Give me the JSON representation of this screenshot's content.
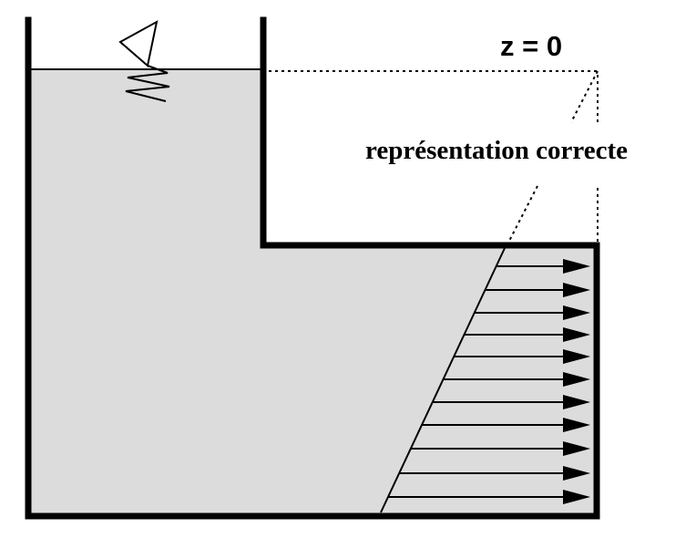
{
  "labels": {
    "datum": "z = 0",
    "representation": "représentation correcte"
  },
  "colors": {
    "water": "#dcdcdc",
    "wall": "#000000",
    "background": "#ffffff"
  },
  "icons": {
    "free_surface_symbol": "water-level-triangle-icon"
  }
}
